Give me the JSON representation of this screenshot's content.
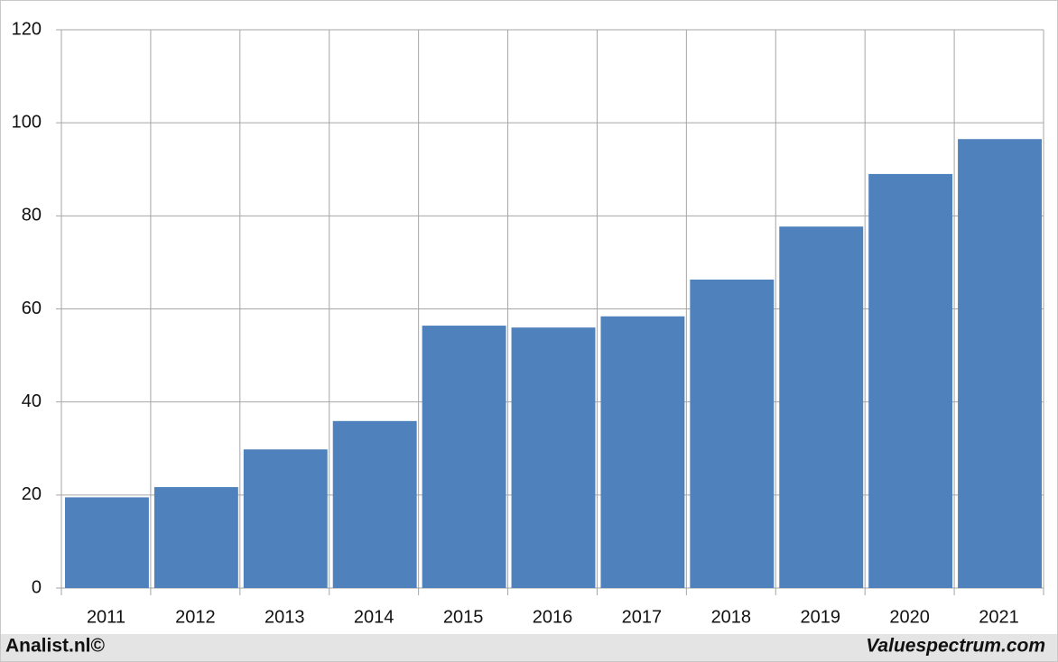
{
  "chart_data": {
    "type": "bar",
    "categories": [
      "2011",
      "2012",
      "2013",
      "2014",
      "2015",
      "2016",
      "2017",
      "2018",
      "2019",
      "2020",
      "2021"
    ],
    "values": [
      19.5,
      21.7,
      29.8,
      35.9,
      56.4,
      56.0,
      58.4,
      66.3,
      77.7,
      89.0,
      96.5
    ],
    "color": "#4f81bd",
    "ylim": [
      0,
      120
    ],
    "yticks": [
      0,
      20,
      40,
      60,
      80,
      100,
      120
    ],
    "grid": true,
    "credits": [
      "Analist.nl©",
      "Valuespectrum.com"
    ]
  }
}
